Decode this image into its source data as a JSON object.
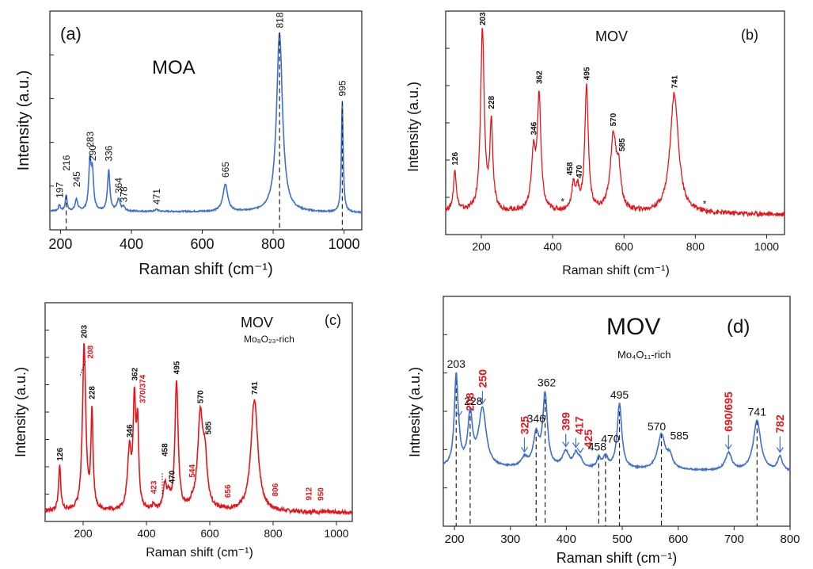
{
  "colors": {
    "blue": "#3f6fcf",
    "red": "#e8141b",
    "red_label": "#e8141b",
    "axis": "#222222",
    "dash": "#222222"
  },
  "chart_data": [
    {
      "panel": "(a)",
      "title": "MOA",
      "subtitle": "",
      "type": "line",
      "xlabel": "Raman shift (cm⁻¹)",
      "ylabel": "Intensity (a.u.)",
      "xlim": [
        170,
        1050
      ],
      "ylim": [
        0,
        100
      ],
      "xticks": [
        200,
        400,
        600,
        800,
        1000
      ],
      "color": "#3f6fcf",
      "baseline": 4,
      "peaks": [
        {
          "x": 197,
          "h": 3,
          "w": 3,
          "label": "197"
        },
        {
          "x": 216,
          "h": 8,
          "w": 3,
          "label": "216",
          "dash": true
        },
        {
          "x": 245,
          "h": 6,
          "w": 4,
          "label": "245"
        },
        {
          "x": 283,
          "h": 24,
          "w": 4,
          "label": "283"
        },
        {
          "x": 290,
          "h": 18,
          "w": 4,
          "label": "290"
        },
        {
          "x": 336,
          "h": 21,
          "w": 4,
          "label": "336"
        },
        {
          "x": 364,
          "h": 6,
          "w": 5,
          "label": "364"
        },
        {
          "x": 378,
          "h": 2,
          "w": 4,
          "label": "378"
        },
        {
          "x": 471,
          "h": 1,
          "w": 5,
          "label": "471"
        },
        {
          "x": 665,
          "h": 14,
          "w": 8,
          "label": "665"
        },
        {
          "x": 818,
          "h": 92,
          "w": 10,
          "label": "818",
          "dash": true
        },
        {
          "x": 995,
          "h": 57,
          "w": 3,
          "label": "995",
          "dash": true
        }
      ]
    },
    {
      "panel": "(b)",
      "title": "MOV",
      "subtitle": "",
      "type": "line",
      "xlabel": "Raman shift (cm⁻¹)",
      "ylabel": "Intensity (a.u.)",
      "xlim": [
        100,
        1050
      ],
      "ylim": [
        0,
        100
      ],
      "xticks": [
        200,
        400,
        600,
        800,
        1000
      ],
      "color": "#e8141b",
      "baseline": 6,
      "peaks": [
        {
          "x": 126,
          "h": 20,
          "w": 5,
          "label": "126"
        },
        {
          "x": 203,
          "h": 91,
          "w": 6,
          "label": "203"
        },
        {
          "x": 228,
          "h": 43,
          "w": 5,
          "label": "228"
        },
        {
          "x": 346,
          "h": 28,
          "w": 7,
          "label": "346"
        },
        {
          "x": 362,
          "h": 56,
          "w": 6,
          "label": "362"
        },
        {
          "x": 458,
          "h": 12,
          "w": 6,
          "label": "458"
        },
        {
          "x": 470,
          "h": 9,
          "w": 6,
          "label": "470"
        },
        {
          "x": 495,
          "h": 62,
          "w": 6,
          "label": "495"
        },
        {
          "x": 570,
          "h": 37,
          "w": 10,
          "label": "570"
        },
        {
          "x": 585,
          "h": 17,
          "w": 7,
          "label": "585"
        },
        {
          "x": 741,
          "h": 60,
          "w": 14,
          "label": "741"
        }
      ],
      "markers": [
        {
          "x": 428,
          "text": "*"
        },
        {
          "x": 826,
          "text": "*"
        }
      ]
    },
    {
      "panel": "(c)",
      "title": "MOV",
      "subtitle": "Mo₈O₂₃-rich",
      "type": "line",
      "xlabel": "Raman shift (cm⁻¹)",
      "ylabel": "Intensity (a.u.)",
      "xlim": [
        80,
        1050
      ],
      "ylim": [
        0,
        100
      ],
      "xticks": [
        200,
        400,
        600,
        800,
        1000
      ],
      "color": "#e8141b",
      "baseline": 3,
      "peaks": [
        {
          "x": 126,
          "h": 24,
          "w": 4,
          "label": "126"
        },
        {
          "x": 203,
          "h": 88,
          "w": 6,
          "label": "203"
        },
        {
          "x": 208,
          "h": 5,
          "w": 4,
          "label": "208",
          "red": true
        },
        {
          "x": 228,
          "h": 53,
          "w": 4,
          "label": "228"
        },
        {
          "x": 346,
          "h": 31,
          "w": 7,
          "label": "346"
        },
        {
          "x": 362,
          "h": 57,
          "w": 5,
          "label": "362"
        },
        {
          "x": 372,
          "h": 43,
          "w": 4,
          "label": "370/374",
          "red": true
        },
        {
          "x": 423,
          "h": 3,
          "w": 4,
          "label": "423",
          "red": true
        },
        {
          "x": 458,
          "h": 13,
          "w": 6,
          "label": "458"
        },
        {
          "x": 470,
          "h": 6,
          "w": 6,
          "label": "470"
        },
        {
          "x": 495,
          "h": 70,
          "w": 6,
          "label": "495"
        },
        {
          "x": 544,
          "h": 2,
          "w": 6,
          "label": "544",
          "red": true
        },
        {
          "x": 570,
          "h": 50,
          "w": 10,
          "label": "570"
        },
        {
          "x": 585,
          "h": 24,
          "w": 8,
          "label": "585"
        },
        {
          "x": 656,
          "h": 0,
          "w": 6,
          "label": "656",
          "red": true
        },
        {
          "x": 741,
          "h": 61,
          "w": 13,
          "label": "741"
        },
        {
          "x": 806,
          "h": 0,
          "w": 6,
          "label": "806",
          "red": true
        },
        {
          "x": 912,
          "h": 0,
          "w": 6,
          "label": "912",
          "red": true
        },
        {
          "x": 950,
          "h": 0,
          "w": 6,
          "label": "950",
          "red": true
        }
      ]
    },
    {
      "panel": "(d)",
      "title": "MOV",
      "subtitle": "Mo₄O₁₁-rich",
      "type": "line",
      "xlabel": "Raman shift (cm⁻¹)",
      "ylabel": "Intnesity (a.u.)",
      "xlim": [
        180,
        800
      ],
      "ylim": [
        0,
        100
      ],
      "xticks": [
        200,
        300,
        400,
        500,
        600,
        700,
        800
      ],
      "color": "#3f6fcf",
      "baseline": 12,
      "peaks": [
        {
          "x": 203,
          "h": 62,
          "w": 4,
          "label": "203",
          "dash": true
        },
        {
          "x": 208,
          "h": 6,
          "w": 3,
          "label": "208",
          "red": true
        },
        {
          "x": 228,
          "h": 35,
          "w": 5,
          "label": "228",
          "dash": true
        },
        {
          "x": 250,
          "h": 40,
          "w": 8,
          "label": "250",
          "red": true
        },
        {
          "x": 325,
          "h": 6,
          "w": 7,
          "label": "325",
          "red": true
        },
        {
          "x": 346,
          "h": 22,
          "w": 6,
          "label": "346",
          "dash": true
        },
        {
          "x": 362,
          "h": 50,
          "w": 5,
          "label": "362",
          "dash": true
        },
        {
          "x": 399,
          "h": 11,
          "w": 7,
          "label": "399",
          "red": true
        },
        {
          "x": 417,
          "h": 9,
          "w": 5,
          "label": "417",
          "red": true
        },
        {
          "x": 425,
          "h": 5,
          "w": 5,
          "label": "425",
          "red": true
        },
        {
          "x": 458,
          "h": 7,
          "w": 4,
          "label": "458",
          "dash": true
        },
        {
          "x": 470,
          "h": 8,
          "w": 5,
          "label": "470",
          "dash": true
        },
        {
          "x": 495,
          "h": 45,
          "w": 5,
          "label": "495",
          "dash": true
        },
        {
          "x": 570,
          "h": 24,
          "w": 8,
          "label": "570",
          "dash": true
        },
        {
          "x": 585,
          "h": 8,
          "w": 6,
          "label": "585"
        },
        {
          "x": 690,
          "h": 12,
          "w": 7,
          "label": "690/695",
          "red": true
        },
        {
          "x": 741,
          "h": 35,
          "w": 8,
          "label": "741",
          "dash": true
        },
        {
          "x": 782,
          "h": 10,
          "w": 5,
          "label": "782",
          "red": true
        }
      ]
    }
  ]
}
